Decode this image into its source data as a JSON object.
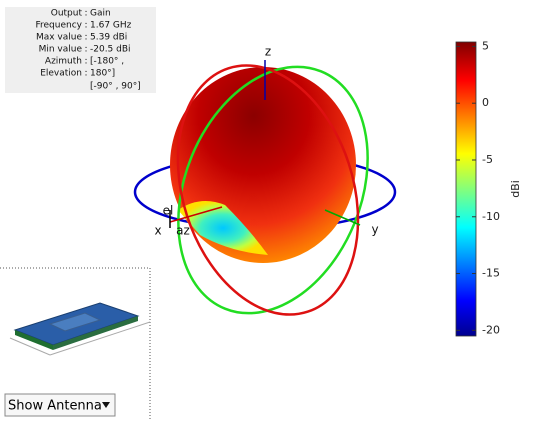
{
  "info": {
    "rows": [
      {
        "label": "Output",
        "value": "Gain"
      },
      {
        "label": "Frequency",
        "value": "1.67 GHz"
      },
      {
        "label": "Max value",
        "value": "5.39 dBi"
      },
      {
        "label": "Min value",
        "value": "-20.5 dBi"
      },
      {
        "label": "Azimuth",
        "value": "[-180° ,"
      },
      {
        "label": "Elevation",
        "value": "180°]"
      }
    ],
    "extra": "[-90° , 90°]"
  },
  "axes": {
    "z": "z",
    "x": "x",
    "y": "y",
    "el": "el",
    "az": "az"
  },
  "colorbar": {
    "label": "dBi",
    "lim": [
      -20.5,
      5.39
    ],
    "ticks": [
      5,
      0,
      -5,
      -10,
      -15,
      -20
    ]
  },
  "dropdown": {
    "label": "Show Antenna"
  }
}
